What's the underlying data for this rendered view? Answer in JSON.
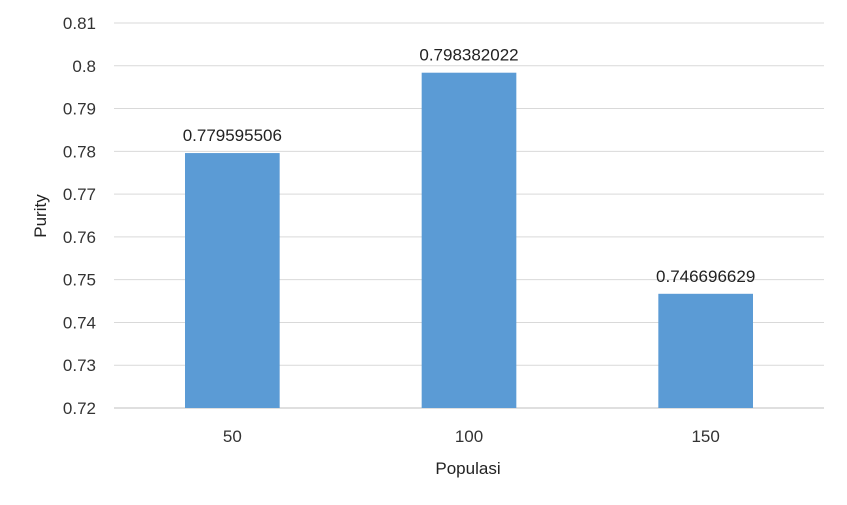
{
  "chart_data": {
    "type": "bar",
    "title": "",
    "xlabel": "Populasi",
    "ylabel": "Purity",
    "categories": [
      "50",
      "100",
      "150"
    ],
    "values": [
      0.779595506,
      0.798382022,
      0.746696629
    ],
    "data_labels": [
      "0.779595506",
      "0.798382022",
      "0.746696629"
    ],
    "y_ticks": [
      "0.72",
      "0.73",
      "0.74",
      "0.75",
      "0.76",
      "0.77",
      "0.78",
      "0.79",
      "0.8",
      "0.81"
    ],
    "ylim": [
      0.72,
      0.81
    ],
    "grid": true,
    "legend": "none",
    "bar_color": "#5B9BD5",
    "grid_color": "#D9D9D9"
  }
}
